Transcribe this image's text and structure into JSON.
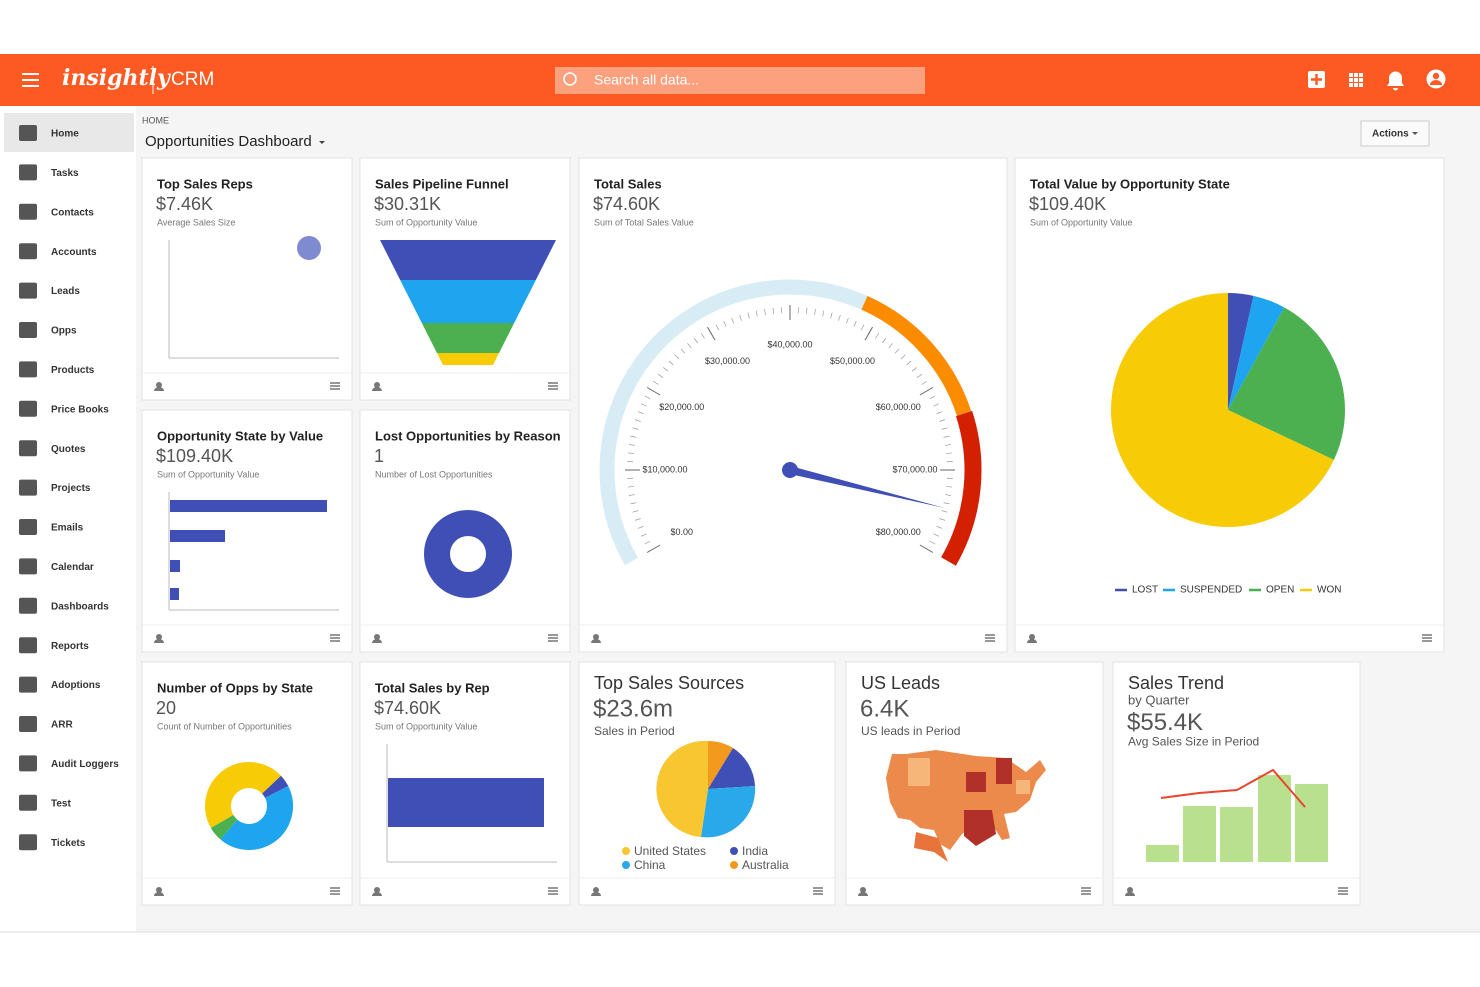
{
  "header": {
    "brand": "insightly",
    "product": "CRM",
    "search_placeholder": "Search all data..."
  },
  "sidebar": [
    "Home",
    "Tasks",
    "Contacts",
    "Accounts",
    "Leads",
    "Opps",
    "Products",
    "Price Books",
    "Quotes",
    "Projects",
    "Emails",
    "Calendar",
    "Dashboards",
    "Reports",
    "Adoptions",
    "ARR",
    "Audit Loggers",
    "Test",
    "Tickets"
  ],
  "breadcrumb": "HOME",
  "page_title": "Opportunities Dashboard",
  "actions": "Actions",
  "cards": [
    {
      "title": "Top Sales Reps",
      "value": "$7.46K",
      "caption": "Average Sales Size"
    },
    {
      "title": "Sales Pipeline Funnel",
      "value": "$30.31K",
      "caption": "Sum of Opportunity Value"
    },
    {
      "title": "Total Sales",
      "value": "$74.60K",
      "caption": "Sum of Total Sales Value"
    },
    {
      "title": "Total Value by Opportunity State",
      "value": "$109.40K",
      "caption": "Sum of Opportunity Value"
    },
    {
      "title": "Opportunity State by Value",
      "value": "$109.40K",
      "caption": "Sum of Opportunity Value"
    },
    {
      "title": "Lost Opportunities by Reason",
      "value": "1",
      "caption": "Number of Lost Opportunities"
    },
    {
      "title": "Number of Opps by State",
      "value": "20",
      "caption": "Count of Number of Opportunities"
    },
    {
      "title": "Total Sales by Rep",
      "value": "$74.60K",
      "caption": "Sum of Opportunity Value"
    },
    {
      "title": "Top Sales Sources",
      "value": "$23.6m",
      "caption": "Sales in Period"
    },
    {
      "title": "US Leads",
      "value": "6.4K",
      "caption": "US leads in Period"
    },
    {
      "title": "Sales Trend",
      "subtitle": "by Quarter",
      "value": "$55.4K",
      "caption": "Avg Sales Size in Period"
    }
  ],
  "gauge": {
    "min": 0,
    "max": 80000,
    "value": 74600,
    "ticks": [
      {
        "value": 0,
        "label": "$0.00"
      },
      {
        "value": 10000,
        "label": "$10,000.00"
      },
      {
        "value": 20000,
        "label": "$20,000.00"
      },
      {
        "value": 30000,
        "label": "$30,000.00"
      },
      {
        "value": 40000,
        "label": "$40,000.00"
      },
      {
        "value": 50000,
        "label": "$50,000.00"
      },
      {
        "value": 60000,
        "label": "$60,000.00"
      },
      {
        "value": 70000,
        "label": "$70,000.00"
      },
      {
        "value": 80000,
        "label": "$80,000.00"
      }
    ]
  },
  "pie": {
    "series": [
      {
        "name": "LOST",
        "color": "#3f4fb5",
        "value": 3.5
      },
      {
        "name": "SUSPENDED",
        "color": "#1fa5f0",
        "value": 4.5
      },
      {
        "name": "OPEN",
        "color": "#4caf50",
        "value": 24
      },
      {
        "name": "WON",
        "color": "#f7cb05",
        "value": 68
      }
    ]
  },
  "sources": [
    {
      "name": "United States",
      "color": "#f8c630"
    },
    {
      "name": "China",
      "color": "#29a8ea"
    },
    {
      "name": "India",
      "color": "#3f4fb5"
    },
    {
      "name": "Australia",
      "color": "#f39a1e"
    }
  ]
}
